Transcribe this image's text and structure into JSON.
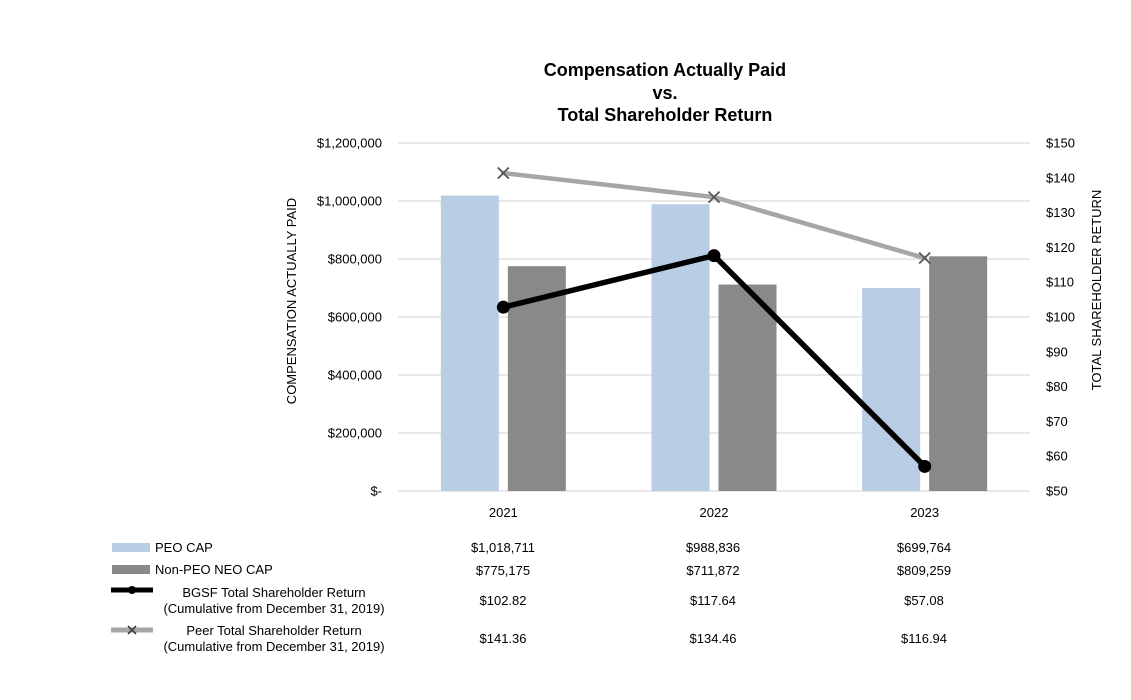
{
  "chart_data": {
    "type": "bar",
    "title_lines": [
      "Compensation Actually Paid",
      "vs.",
      "Total Shareholder Return"
    ],
    "categories": [
      "2021",
      "2022",
      "2023"
    ],
    "ylabel": "COMPENSATION ACTUALLY PAID",
    "y2label": "TOTAL SHAREHOLDER RETURN",
    "ylim": [
      0,
      1200000
    ],
    "y2lim": [
      50,
      150
    ],
    "y_ticks": [
      "$-",
      "$200,000",
      "$400,000",
      "$600,000",
      "$800,000",
      "$1,000,000",
      "$1,200,000"
    ],
    "y2_ticks": [
      "$50",
      "$60",
      "$70",
      "$80",
      "$90",
      "$100",
      "$110",
      "$120",
      "$130",
      "$140",
      "$150"
    ],
    "grid": true,
    "series": [
      {
        "name": "PEO CAP",
        "kind": "bar",
        "axis": "left",
        "color": "#b9cde4",
        "values": [
          1018711,
          988836,
          699764
        ],
        "labels": [
          "$1,018,711",
          "$988,836",
          "$699,764"
        ]
      },
      {
        "name": "Non-PEO NEO CAP",
        "kind": "bar",
        "axis": "left",
        "color": "#898989",
        "values": [
          775175,
          711872,
          809259
        ],
        "labels": [
          "$775,175",
          "$711,872",
          "$809,259"
        ]
      },
      {
        "name": "BGSF Total Shareholder Return",
        "name_line2": "(Cumulative from December 31, 2019)",
        "kind": "line",
        "marker": "circle",
        "axis": "right",
        "color": "#000000",
        "values": [
          102.82,
          117.64,
          57.08
        ],
        "labels": [
          "$102.82",
          "$117.64",
          "$57.08"
        ]
      },
      {
        "name": "Peer Total Shareholder Return",
        "name_line2": "(Cumulative from December 31, 2019)",
        "kind": "line",
        "marker": "x",
        "axis": "right",
        "color": "#a6a6a6",
        "values": [
          141.36,
          134.46,
          116.94
        ],
        "labels": [
          "$141.36",
          "$134.46",
          "$116.94"
        ]
      }
    ]
  }
}
